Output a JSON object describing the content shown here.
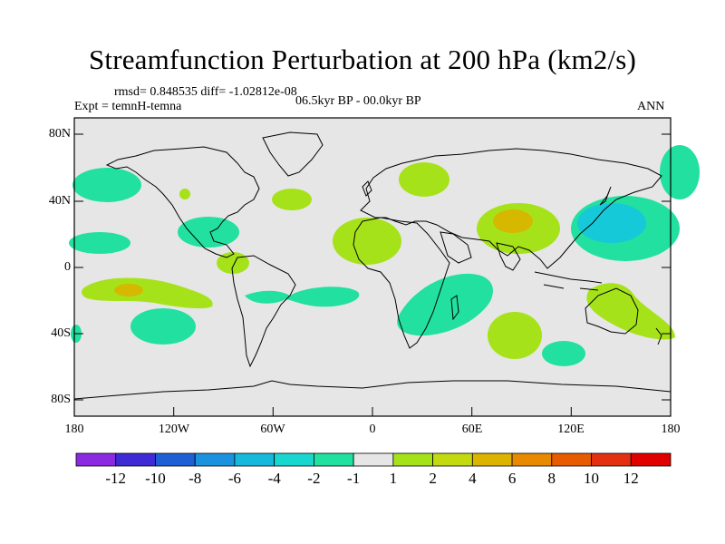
{
  "title": "Streamfunction Perturbation at 200 hPa (km2/s)",
  "stats_text": "rmsd= 0.848535 diff= -1.02812e-08",
  "experiment_text": "Expt = temnH-temna",
  "period_text": "06.5kyr BP - 00.0kyr BP",
  "season_text": "ANN",
  "lat_ticks": [
    "80N",
    "40N",
    "0",
    "40S",
    "80S"
  ],
  "lon_ticks": [
    "180",
    "120W",
    "60W",
    "0",
    "60E",
    "120E",
    "180"
  ],
  "colorbar": {
    "labels": [
      "-12",
      "-10",
      "-8",
      "-6",
      "-4",
      "-2",
      "-1",
      "1",
      "2",
      "4",
      "6",
      "8",
      "10",
      "12"
    ],
    "colors": [
      "#8a2be2",
      "#3e2bd6",
      "#1f5fd4",
      "#1a92dd",
      "#16b9dc",
      "#19d7cf",
      "#22e0a0",
      "#e6e6e6",
      "#a6e21a",
      "#c3da10",
      "#dcb300",
      "#e88a00",
      "#e85a00",
      "#e33010",
      "#e00000"
    ]
  },
  "colors": {
    "ocean": "#e6e6e6",
    "coast": "#000000",
    "neg_light": "#22e0a0",
    "neg_mid": "#16c9d8",
    "pos_light": "#a6e21a",
    "pos_mid": "#d6b800"
  }
}
